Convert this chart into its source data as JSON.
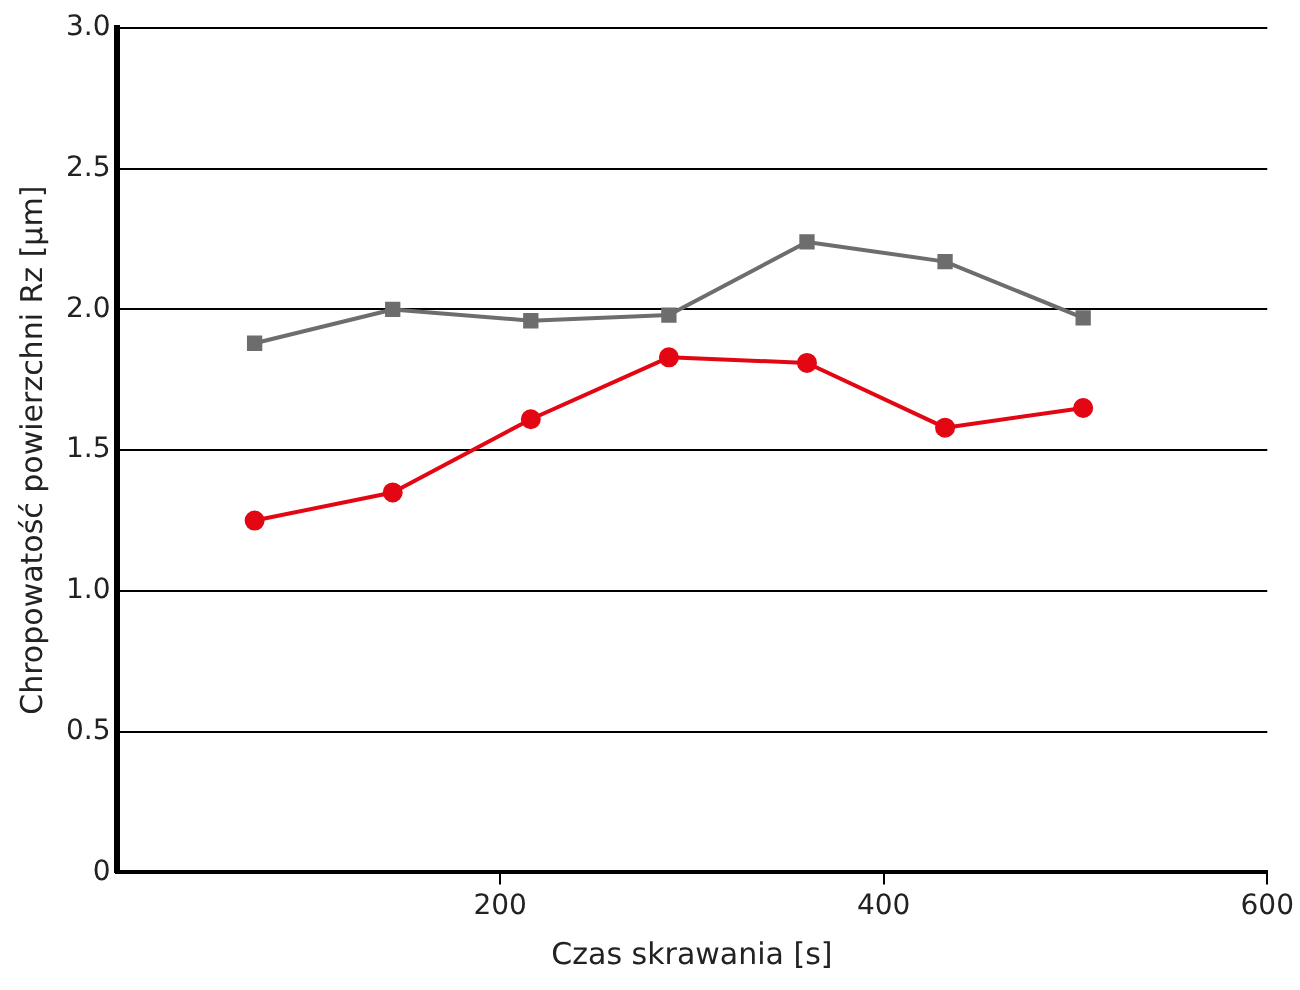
{
  "chart_data": {
    "type": "line",
    "xlabel": "Czas skrawania [s]",
    "ylabel": "Chropowatość powierzchni Rz [µm]",
    "x": [
      72,
      144,
      216,
      288,
      360,
      432,
      504
    ],
    "series": [
      {
        "color": "#6d6d6d",
        "marker": "square",
        "values": [
          1.88,
          2.0,
          1.96,
          1.98,
          2.24,
          2.17,
          1.97
        ]
      },
      {
        "color": "#e30613",
        "marker": "circle",
        "values": [
          1.25,
          1.35,
          1.61,
          1.83,
          1.81,
          1.58,
          1.65
        ]
      }
    ],
    "xlim": [
      0,
      600
    ],
    "xticks": [
      200,
      400,
      600
    ],
    "ylim": [
      0,
      3.0
    ],
    "yticks": [
      {
        "value": 0,
        "label": "0"
      },
      {
        "value": 0.5,
        "label": "0.5"
      },
      {
        "value": 1,
        "label": "1.0"
      },
      {
        "value": 1.5,
        "label": "1.5"
      },
      {
        "value": 2,
        "label": "2.0"
      },
      {
        "value": 2.5,
        "label": "2.5"
      },
      {
        "value": 3,
        "label": "3.0"
      }
    ],
    "grid": "y",
    "legend": false,
    "line_style": "solid"
  }
}
